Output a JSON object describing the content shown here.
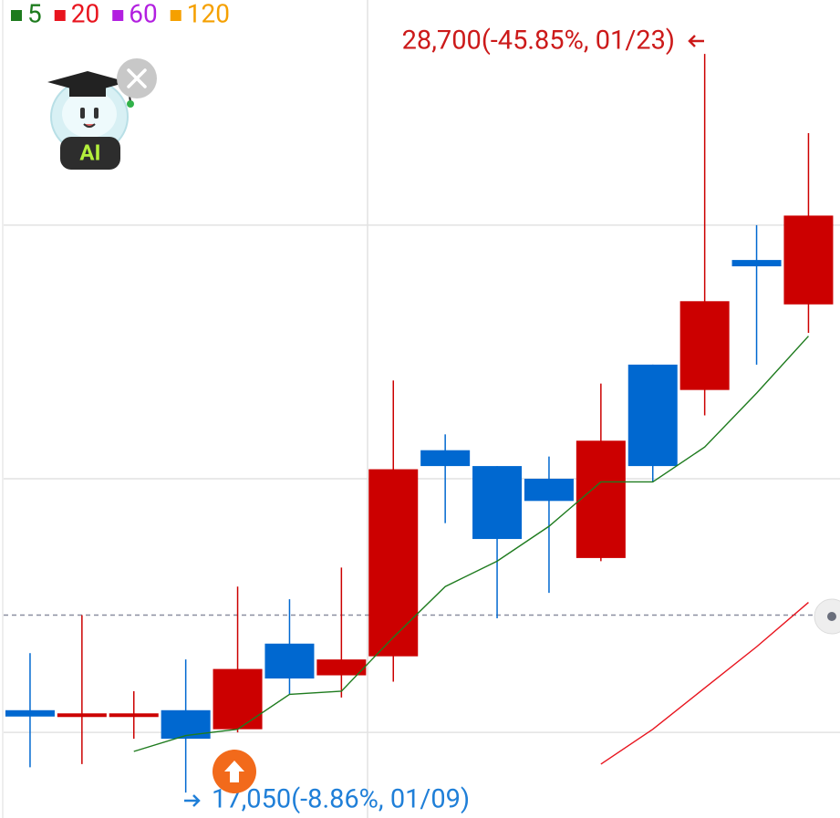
{
  "chart_data": {
    "type": "candlestick",
    "categories": [
      null,
      null,
      null,
      null,
      null,
      null,
      null,
      null,
      null,
      null,
      null,
      null,
      null,
      null,
      null,
      null
    ],
    "open": [
      18350,
      18250,
      18300,
      18350,
      18050,
      19400,
      18900,
      19200,
      22450,
      22200,
      22000,
      20750,
      23800,
      23400,
      25450,
      24750
    ],
    "high": [
      19250,
      19850,
      18650,
      19150,
      20300,
      20100,
      20600,
      23550,
      22700,
      22200,
      22350,
      23500,
      23800,
      28700,
      26000,
      27450
    ],
    "low": [
      17450,
      17500,
      17900,
      17050,
      18000,
      18600,
      18550,
      18800,
      21300,
      19800,
      20200,
      20700,
      21950,
      23000,
      23800,
      24300
    ],
    "close": [
      18250,
      18300,
      18300,
      17900,
      19000,
      18850,
      19150,
      22150,
      22200,
      21050,
      21650,
      22600,
      22200,
      24800,
      25350,
      26150
    ],
    "up_color": "#cc0000",
    "down_color": "#0068d0",
    "series": [
      {
        "name": "5",
        "color": "#1e7b1e",
        "values": [
          null,
          null,
          17700,
          17950,
          18050,
          18600,
          18650,
          19500,
          20300,
          20700,
          21250,
          21950,
          21950,
          22500,
          23350,
          24250
        ]
      },
      {
        "name": "20",
        "color": "#e8141e",
        "values": [
          null,
          null,
          null,
          null,
          null,
          null,
          null,
          null,
          null,
          null,
          null,
          17500,
          18050,
          18700,
          19350,
          20050
        ]
      },
      {
        "name": "60",
        "color": "#b21fe0",
        "values": [
          null,
          null,
          null,
          null,
          null,
          null,
          null,
          null,
          null,
          null,
          null,
          null,
          null,
          null,
          null,
          null
        ]
      },
      {
        "name": "120",
        "color": "#f5a000",
        "values": [
          null,
          null,
          null,
          null,
          null,
          null,
          null,
          null,
          null,
          null,
          null,
          null,
          null,
          null,
          null,
          null
        ]
      }
    ],
    "ylim": [
      16650,
      29550
    ],
    "yticks": [
      18000,
      22000,
      26000
    ],
    "grid": true,
    "price_line": 19850,
    "annotations": [
      {
        "text": "28,700(-45.85%, 01/23)",
        "color": "#cc1a1a"
      },
      {
        "text": "17,050(-8.86%, 01/09)",
        "color": "#1f7fd8"
      }
    ]
  },
  "badge": {
    "label": "AI"
  }
}
